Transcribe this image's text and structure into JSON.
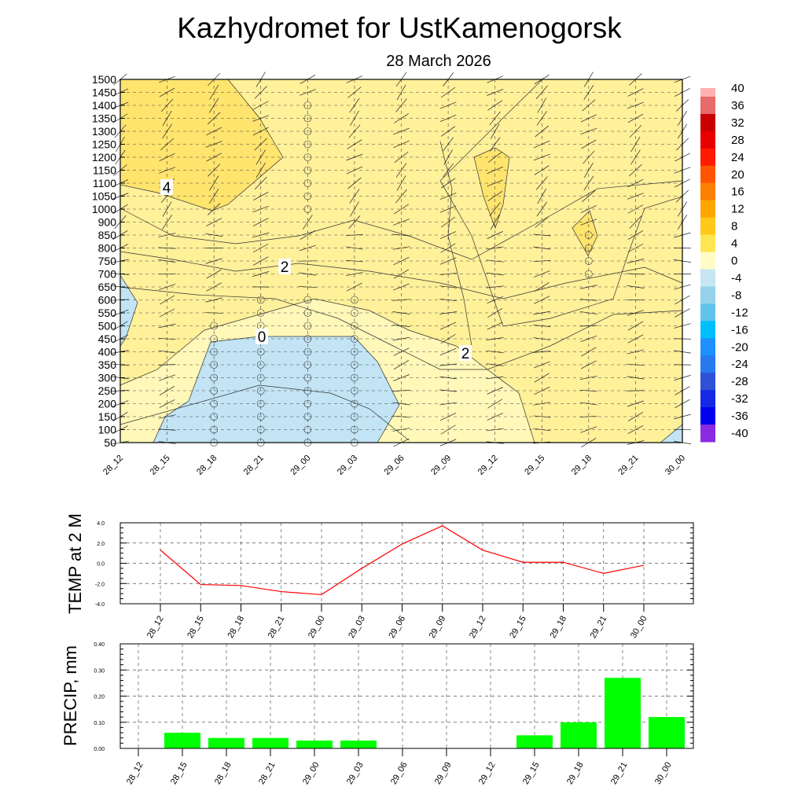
{
  "chart_data": [
    {
      "type": "heatmap",
      "title": "Kazhydromet  for UstKamenogorsk",
      "subtitle": "28 March 2026",
      "x_ticks": [
        "28_12",
        "28_15",
        "28_18",
        "28_21",
        "29_00",
        "29_03",
        "29_06",
        "29_09",
        "29_12",
        "29_15",
        "29_18",
        "29_21",
        "30_00"
      ],
      "y_ticks": [
        "1500",
        "1450",
        "1400",
        "1350",
        "1300",
        "1250",
        "1200",
        "1150",
        "1100",
        "1050",
        "1000",
        "900",
        "850",
        "800",
        "750",
        "700",
        "650",
        "600",
        "550",
        "500",
        "450",
        "400",
        "350",
        "300",
        "250",
        "200",
        "150",
        "100",
        "50"
      ],
      "contour_labels": [
        "4",
        "2",
        "0",
        "2"
      ],
      "colorbar": {
        "labels": [
          "40",
          "36",
          "32",
          "28",
          "24",
          "20",
          "16",
          "12",
          "8",
          "4",
          "0",
          "-4",
          "-8",
          "-12",
          "-16",
          "-20",
          "-24",
          "-28",
          "-32",
          "-36",
          "-40"
        ],
        "colors": [
          "#ffb0b0",
          "#e86a6a",
          "#c80000",
          "#e60000",
          "#ff1a00",
          "#ff5500",
          "#ff8000",
          "#ffa500",
          "#ffc81a",
          "#ffe650",
          "#fffcc8",
          "#c6e6f4",
          "#96d2ec",
          "#5ec4ee",
          "#00bfff",
          "#1e90ff",
          "#2878ee",
          "#3050d8",
          "#1428e6",
          "#0000ee",
          "#8a2be2"
        ]
      },
      "fill_colors": {
        "below_0": "#c2e4f4",
        "0_2": "#fff8b8",
        "2_4": "#fff09a",
        "4_6": "#ffe46e"
      }
    },
    {
      "type": "line",
      "ylabel": "TEMP at 2 M",
      "categories": [
        "28_12",
        "28_15",
        "28_18",
        "28_21",
        "29_00",
        "29_03",
        "29_06",
        "29_09",
        "29_12",
        "29_15",
        "29_18",
        "29_21",
        "30_00"
      ],
      "values": [
        1.3,
        -2.1,
        -2.2,
        -2.8,
        -3.1,
        -0.5,
        1.9,
        3.7,
        1.3,
        0.1,
        0.1,
        -1.0,
        -0.2
      ],
      "y_ticks": [
        "4.0",
        "2.0",
        "0.0",
        "-2.0",
        "-4.0"
      ],
      "ylim": [
        -4,
        4
      ],
      "color": "#ff0000",
      "grid": true
    },
    {
      "type": "bar",
      "ylabel": "PRECIP, mm",
      "categories": [
        "28_12",
        "28_15",
        "28_18",
        "28_21",
        "29_00",
        "29_03",
        "29_06",
        "29_09",
        "29_12",
        "29_15",
        "29_18",
        "29_21",
        "30_00"
      ],
      "values": [
        0,
        0.06,
        0.04,
        0.04,
        0.03,
        0.03,
        0,
        0,
        0,
        0.05,
        0.1,
        0.27,
        0.12
      ],
      "y_ticks": [
        "0.40",
        "0.30",
        "0.20",
        "0.10",
        "0.00"
      ],
      "ylim": [
        0,
        0.4
      ],
      "color": "#00ff00",
      "grid": true
    }
  ]
}
